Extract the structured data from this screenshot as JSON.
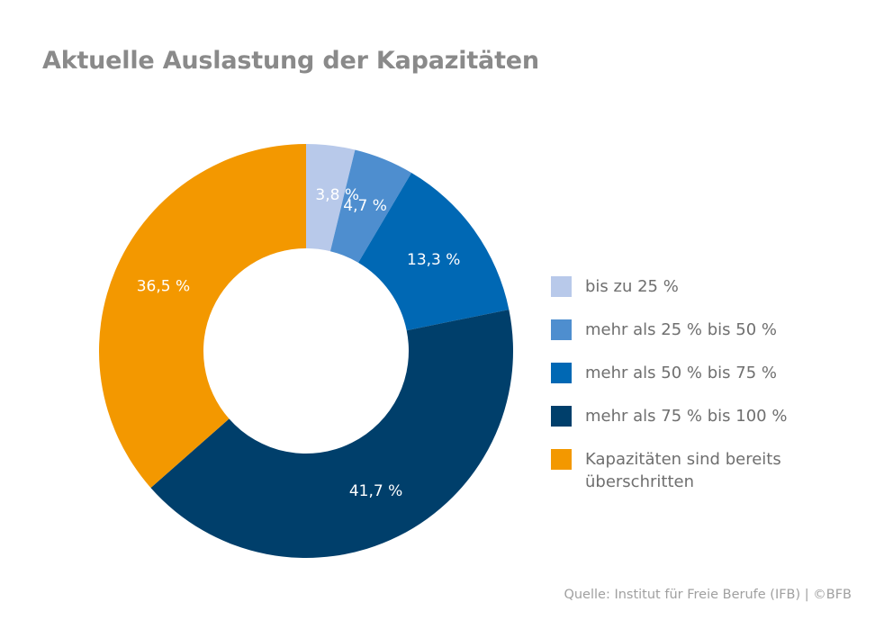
{
  "title": "Aktuelle Auslastung der Kapazitäten",
  "source": "Quelle: Institut für Freie Berufe (IFB) | ©BFB",
  "chart_data": {
    "type": "pie",
    "donut": true,
    "title": "Aktuelle Auslastung der Kapazitäten",
    "categories": [
      "bis zu 25 %",
      "mehr als 25 % bis 50 %",
      "mehr als 50 % bis 75 %",
      "mehr als 75 % bis 100 %",
      "Kapazitäten sind bereits\nüberschritten"
    ],
    "values": [
      3.8,
      4.7,
      13.3,
      41.7,
      36.5
    ],
    "labels": [
      "3,8 %",
      "4,7 %",
      "13,3 %",
      "41,7 %",
      "36,5 %"
    ],
    "colors": [
      "#b8c9ea",
      "#4e8ecf",
      "#0068b4",
      "#003f6b",
      "#f39800"
    ],
    "legend_position": "right"
  }
}
